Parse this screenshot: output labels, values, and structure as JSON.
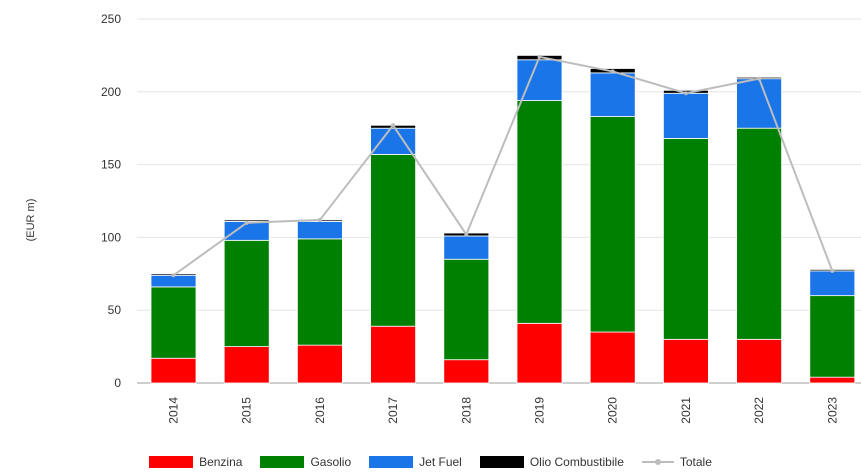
{
  "chart_data": {
    "type": "bar",
    "stacked": true,
    "categories": [
      "2014",
      "2015",
      "2016",
      "2017",
      "2018",
      "2019",
      "2020",
      "2021",
      "2022",
      "2023"
    ],
    "series": [
      {
        "name": "Benzina",
        "color": "#ff0000",
        "values": [
          17,
          25,
          26,
          39,
          16,
          41,
          35,
          30,
          30,
          4
        ]
      },
      {
        "name": "Gasolio",
        "color": "#008000",
        "values": [
          49,
          73,
          73,
          118,
          69,
          153,
          148,
          138,
          145,
          56
        ]
      },
      {
        "name": "Jet Fuel",
        "color": "#1a75e8",
        "values": [
          8,
          13,
          12,
          18,
          16,
          28,
          30,
          31,
          34,
          17
        ]
      },
      {
        "name": "Olio Combustibile",
        "color": "#000000",
        "values": [
          1,
          1,
          1,
          2,
          2,
          3,
          3,
          2,
          1,
          1
        ]
      }
    ],
    "line": {
      "name": "Totale",
      "color": "#bdbdbd",
      "values": [
        74,
        110,
        112,
        177,
        102,
        224,
        214,
        199,
        209,
        77
      ]
    },
    "title": "",
    "xlabel": "",
    "ylabel": "(EUR m)",
    "ylim": [
      0,
      250
    ],
    "yticks": [
      0,
      50,
      100,
      150,
      200,
      250
    ],
    "grid": true,
    "legend_position": "bottom"
  }
}
